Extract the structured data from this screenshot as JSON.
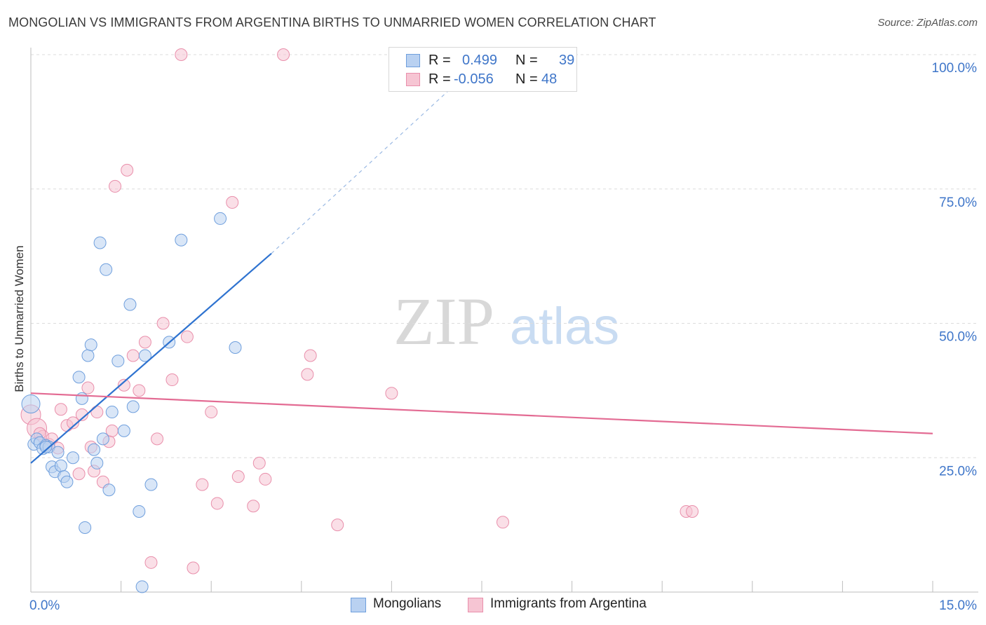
{
  "title": "MONGOLIAN VS IMMIGRANTS FROM ARGENTINA BIRTHS TO UNMARRIED WOMEN CORRELATION CHART",
  "source": "Source: ZipAtlas.com",
  "watermark": {
    "zip": "ZIP",
    "atlas": "atlas"
  },
  "legend": {
    "r_label": "R =",
    "n_label": "N =",
    "series": [
      {
        "name": "Mongolians",
        "r": "0.499",
        "n": "39"
      },
      {
        "name": "Immigrants from Argentina",
        "r": "-0.056",
        "n": "48"
      }
    ]
  },
  "colors": {
    "blue_fill": "#b9d1f1",
    "blue_stroke": "#6f9fdd",
    "blue_line": "#2f73d0",
    "pink_fill": "#f6c5d3",
    "pink_stroke": "#e98fab",
    "pink_line": "#e36b93",
    "axis_text": "#3f76c9",
    "grid": "#dcdcdc"
  },
  "chart_data": {
    "type": "scatter",
    "xlabel": "",
    "ylabel": "Births to Unmarried Women",
    "xlim": [
      0,
      15
    ],
    "ylim": [
      0,
      100
    ],
    "x_tick_labels": [
      "0.0%",
      "15.0%"
    ],
    "y_tick_labels": [
      "25.0%",
      "50.0%",
      "75.0%",
      "100.0%"
    ],
    "y_ticks": [
      25,
      50,
      75,
      100
    ],
    "x_minor_ticks": [
      1.5,
      3.0,
      4.5,
      6.0,
      7.5,
      9.0,
      10.5,
      12.0,
      13.5,
      15.0
    ],
    "series": [
      {
        "name": "Mongolians",
        "r": 0.499,
        "n": 39,
        "points": [
          [
            0.0,
            35.0
          ],
          [
            0.05,
            27.5
          ],
          [
            0.1,
            28.5
          ],
          [
            0.15,
            27.8
          ],
          [
            0.2,
            26.7
          ],
          [
            0.25,
            27.3
          ],
          [
            0.3,
            27.0
          ],
          [
            0.35,
            23.3
          ],
          [
            0.4,
            22.4
          ],
          [
            0.45,
            26.0
          ],
          [
            0.5,
            23.5
          ],
          [
            0.55,
            21.5
          ],
          [
            0.6,
            20.5
          ],
          [
            0.7,
            25.0
          ],
          [
            0.8,
            40.0
          ],
          [
            0.85,
            36.0
          ],
          [
            0.9,
            12.0
          ],
          [
            0.95,
            44.0
          ],
          [
            1.0,
            46.0
          ],
          [
            1.05,
            26.5
          ],
          [
            1.1,
            24.0
          ],
          [
            1.15,
            65.0
          ],
          [
            1.2,
            28.5
          ],
          [
            1.25,
            60.0
          ],
          [
            1.3,
            19.0
          ],
          [
            1.35,
            33.5
          ],
          [
            1.45,
            43.0
          ],
          [
            1.55,
            30.0
          ],
          [
            1.65,
            53.5
          ],
          [
            1.7,
            34.5
          ],
          [
            1.8,
            15.0
          ],
          [
            1.85,
            1.0
          ],
          [
            1.9,
            44.0
          ],
          [
            2.0,
            20.0
          ],
          [
            2.3,
            46.5
          ],
          [
            2.5,
            65.5
          ],
          [
            3.15,
            69.5
          ],
          [
            3.4,
            45.5
          ],
          [
            0.25,
            27.0
          ]
        ],
        "trend": {
          "x0": 0.0,
          "y0": 24.0,
          "x1": 4.0,
          "y1": 63.0,
          "dashed_to_x": 7.5,
          "dashed_to_y": 99.0
        }
      },
      {
        "name": "Immigrants from Argentina",
        "r": -0.056,
        "n": 48,
        "points": [
          [
            0.0,
            33.0
          ],
          [
            0.1,
            30.5
          ],
          [
            0.2,
            29.0
          ],
          [
            0.3,
            27.5
          ],
          [
            0.35,
            28.5
          ],
          [
            0.45,
            26.8
          ],
          [
            0.5,
            34.0
          ],
          [
            0.6,
            31.0
          ],
          [
            0.7,
            31.5
          ],
          [
            0.8,
            22.0
          ],
          [
            0.85,
            33.0
          ],
          [
            0.95,
            38.0
          ],
          [
            1.0,
            27.0
          ],
          [
            1.05,
            22.5
          ],
          [
            1.1,
            33.5
          ],
          [
            1.2,
            20.5
          ],
          [
            1.3,
            28.0
          ],
          [
            1.35,
            30.0
          ],
          [
            1.4,
            75.5
          ],
          [
            1.55,
            38.5
          ],
          [
            1.6,
            78.5
          ],
          [
            1.7,
            44.0
          ],
          [
            1.8,
            37.5
          ],
          [
            1.9,
            46.5
          ],
          [
            2.0,
            5.5
          ],
          [
            2.1,
            28.5
          ],
          [
            2.2,
            50.0
          ],
          [
            2.35,
            39.5
          ],
          [
            2.5,
            100.0
          ],
          [
            2.6,
            47.5
          ],
          [
            2.7,
            4.5
          ],
          [
            2.85,
            20.0
          ],
          [
            3.0,
            33.5
          ],
          [
            3.1,
            16.5
          ],
          [
            3.35,
            72.5
          ],
          [
            3.45,
            21.5
          ],
          [
            3.7,
            16.0
          ],
          [
            3.8,
            24.0
          ],
          [
            3.9,
            21.0
          ],
          [
            4.2,
            100.0
          ],
          [
            4.6,
            40.5
          ],
          [
            4.65,
            44.0
          ],
          [
            5.1,
            12.5
          ],
          [
            6.0,
            37.0
          ],
          [
            7.85,
            13.0
          ],
          [
            10.9,
            15.0
          ],
          [
            11.0,
            15.0
          ],
          [
            0.15,
            29.5
          ]
        ],
        "trend": {
          "x0": 0.0,
          "y0": 37.0,
          "x1": 15.0,
          "y1": 29.5
        }
      }
    ]
  }
}
